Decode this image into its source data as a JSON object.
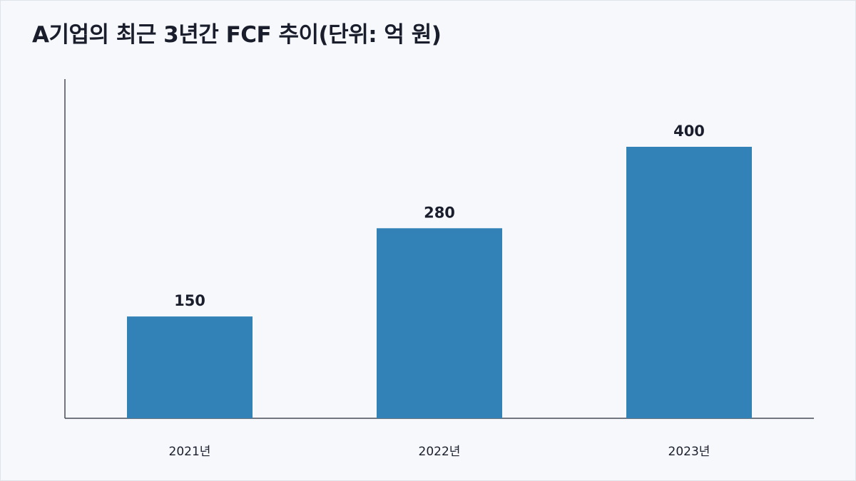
{
  "chart_data": {
    "type": "bar",
    "title": "A기업의 최근 3년간 FCF 추이(단위: 억 원)",
    "categories": [
      "2021년",
      "2022년",
      "2023년"
    ],
    "values": [
      150,
      280,
      400
    ],
    "data_labels": [
      "150",
      "280",
      "400"
    ],
    "ylim": [
      0,
      400
    ],
    "grid": false,
    "legend": "none",
    "bar_color": "#3282b8",
    "axis_color": "#454a58",
    "text_color": "#1a1e2c"
  }
}
